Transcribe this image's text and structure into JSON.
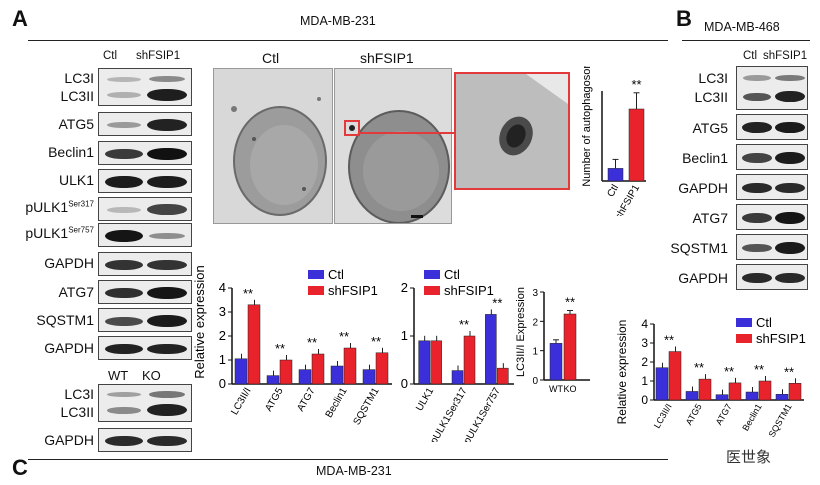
{
  "panel_a": {
    "letter": "A",
    "cell_line": "MDA-MB-231",
    "lanes": [
      "Ctl",
      "shFSIP1"
    ],
    "blot_labels": [
      "LC3I",
      "LC3II",
      "ATG5",
      "Beclin1",
      "ULK1",
      "pULK1",
      "Ser317",
      "pULK1",
      "Ser757",
      "GAPDH",
      "ATG7",
      "SQSTM1",
      "GAPDH"
    ],
    "em_labels": [
      "Ctl",
      "shFSIP1"
    ]
  },
  "panel_b": {
    "letter": "B",
    "cell_line": "MDA-MB-468",
    "lanes": [
      "Ctl",
      "shFSIP1"
    ],
    "blot_labels": [
      "LC3I",
      "LC3II",
      "ATG5",
      "Beclin1",
      "GAPDH",
      "ATG7",
      "SQSTM1",
      "GAPDH"
    ]
  },
  "panel_c": {
    "letter": "C",
    "cell_line": "MDA-MB-231",
    "lanes": [
      "WT",
      "KO"
    ],
    "blot_labels": [
      "LC3I",
      "LC3II",
      "GAPDH"
    ]
  },
  "watermark": "医世象",
  "colors": {
    "ctl": "#3a2fd8",
    "sh": "#e8232b",
    "box": "#e23a3a"
  },
  "chart_data": [
    {
      "id": "autophagosome",
      "type": "bar",
      "categories": [
        "Ctl",
        "shFSIP1"
      ],
      "values": [
        0.7,
        4.0
      ],
      "errors": [
        0.5,
        0.9
      ],
      "ylabel": "Number of autophagosome",
      "significance": [
        "",
        "**"
      ],
      "ylim": [
        0,
        5
      ]
    },
    {
      "id": "expr_231_a",
      "type": "bar",
      "categories": [
        "LC3II/I",
        "ATG5",
        "ATG7",
        "Beclin1",
        "SQSTM1"
      ],
      "series": [
        {
          "name": "Ctl",
          "values": [
            1.05,
            0.35,
            0.6,
            0.75,
            0.6
          ]
        },
        {
          "name": "shFSIP1",
          "values": [
            3.3,
            1.0,
            1.25,
            1.5,
            1.3
          ]
        }
      ],
      "significance": [
        "**",
        "**",
        "**",
        "**",
        "**"
      ],
      "ylabel": "Relative expression",
      "ylim": [
        0,
        4
      ],
      "yticks": [
        0,
        1,
        2,
        3,
        4
      ]
    },
    {
      "id": "expr_231_b",
      "type": "bar",
      "categories": [
        "ULK1",
        "pULK1Ser317",
        "pULK1Ser757"
      ],
      "series": [
        {
          "name": "Ctl",
          "values": [
            0.9,
            0.28,
            1.45
          ]
        },
        {
          "name": "shFSIP1",
          "values": [
            0.9,
            1.0,
            0.33
          ]
        }
      ],
      "significance": [
        "",
        "**",
        "**"
      ],
      "ylim": [
        0,
        2
      ],
      "yticks": [
        0,
        1,
        2
      ]
    },
    {
      "id": "lc3_wtko",
      "type": "bar",
      "categories": [
        "WT",
        "KO"
      ],
      "values": [
        1.25,
        2.25
      ],
      "significance": [
        "",
        "**"
      ],
      "ylabel": "LC3II/I Expression",
      "ylim": [
        0,
        3
      ],
      "yticks": [
        0,
        1,
        2,
        3
      ]
    },
    {
      "id": "expr_468",
      "type": "bar",
      "categories": [
        "LC3II/I",
        "ATG5",
        "ATG7",
        "Beclin1",
        "SQSTM1"
      ],
      "series": [
        {
          "name": "Ctl",
          "values": [
            1.7,
            0.45,
            0.28,
            0.42,
            0.3
          ]
        },
        {
          "name": "shFSIP1",
          "values": [
            2.55,
            1.1,
            0.9,
            1.0,
            0.88
          ]
        }
      ],
      "significance": [
        "**",
        "**",
        "**",
        "**",
        "**"
      ],
      "ylabel": "Relative expression",
      "ylim": [
        0,
        4
      ],
      "yticks": [
        0,
        1,
        2,
        3,
        4
      ]
    }
  ]
}
